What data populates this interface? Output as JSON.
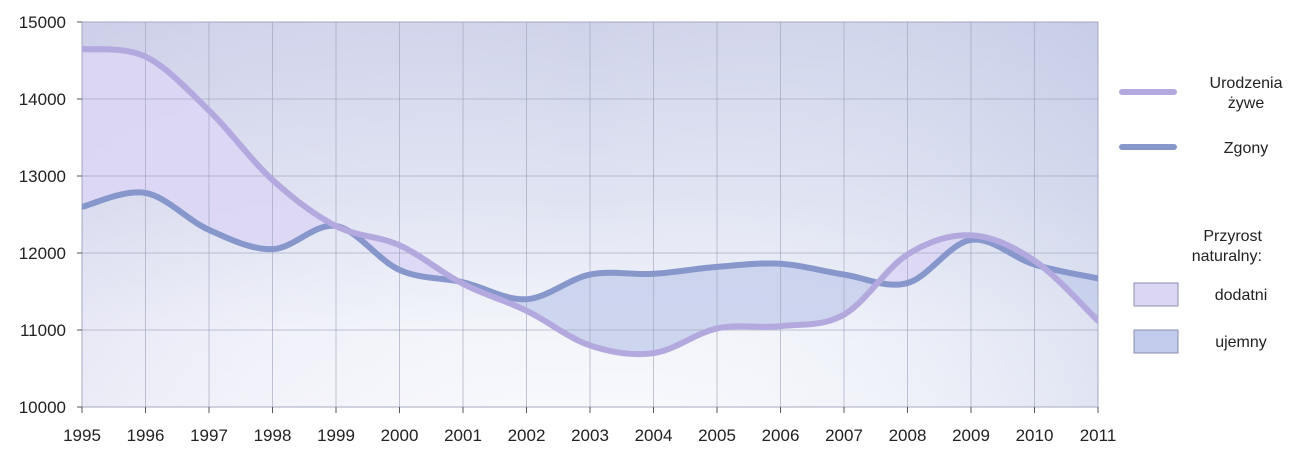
{
  "chart_data": {
    "type": "line",
    "title": "",
    "xlabel": "",
    "ylabel": "",
    "x": [
      1995,
      1996,
      1997,
      1998,
      1999,
      2000,
      2001,
      2002,
      2003,
      2004,
      2005,
      2006,
      2007,
      2008,
      2009,
      2010,
      2011
    ],
    "x_ticks": [
      "1995",
      "1996",
      "1997",
      "1998",
      "1999",
      "2000",
      "2001",
      "2002",
      "2003",
      "2004",
      "2005",
      "2006",
      "2007",
      "2008",
      "2009",
      "2010",
      "2011"
    ],
    "y_ticks": [
      "10000",
      "11000",
      "12000",
      "13000",
      "14000",
      "15000"
    ],
    "ylim": [
      10000,
      15000
    ],
    "grid": true,
    "legend_position": "right",
    "series": [
      {
        "name": "Urodzenia żywe",
        "name_lines": [
          "Urodzenia",
          "żywe"
        ],
        "color": "#b3a9de",
        "values": [
          14650,
          14550,
          13850,
          12950,
          12350,
          12100,
          11600,
          11250,
          10800,
          10700,
          11020,
          11050,
          11200,
          11980,
          12230,
          11900,
          11120
        ]
      },
      {
        "name": "Zgony",
        "name_lines": [
          "Zgony"
        ],
        "color": "#8797cc",
        "values": [
          12600,
          12780,
          12300,
          12050,
          12350,
          11780,
          11620,
          11400,
          11720,
          11730,
          11820,
          11860,
          11720,
          11610,
          12170,
          11850,
          11670
        ]
      }
    ],
    "fill_legend": {
      "title_lines": [
        "Przyrost",
        "naturalny:"
      ],
      "items": [
        {
          "label": "dodatni",
          "color": "#dcd6f5"
        },
        {
          "label": "ujemny",
          "color": "#c2cbeb"
        }
      ]
    }
  }
}
